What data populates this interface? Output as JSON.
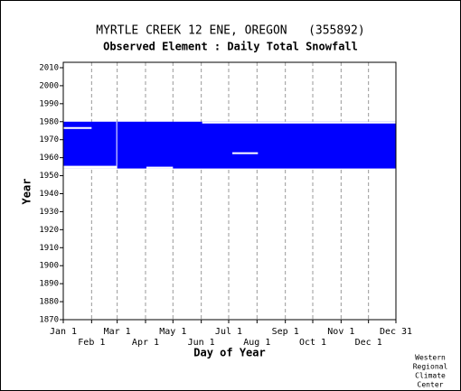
{
  "chart_data": {
    "type": "availability",
    "title": "MYRTLE CREEK 12 ENE, OREGON   (355892)",
    "subtitle": "Observed Element : Daily Total Snowfall",
    "ylabel": "Year",
    "xlabel": "Day of Year",
    "credit": [
      "Western",
      "Regional",
      "Climate",
      "Center"
    ],
    "color": "#0000ff",
    "gap_color": "#ffffff",
    "xlim": [
      1,
      365
    ],
    "ylim": [
      1870,
      2013
    ],
    "xticks": [
      {
        "value": 1,
        "label": "Jan 1"
      },
      {
        "value": 32,
        "label": "Feb 1"
      },
      {
        "value": 60,
        "label": "Mar 1"
      },
      {
        "value": 91,
        "label": "Apr 1"
      },
      {
        "value": 121,
        "label": "May 1"
      },
      {
        "value": 152,
        "label": "Jun 1"
      },
      {
        "value": 182,
        "label": "Jul 1"
      },
      {
        "value": 213,
        "label": "Aug 1"
      },
      {
        "value": 244,
        "label": "Sep 1"
      },
      {
        "value": 274,
        "label": "Oct 1"
      },
      {
        "value": 305,
        "label": "Nov 1"
      },
      {
        "value": 335,
        "label": "Dec 1"
      },
      {
        "value": 365,
        "label": "Dec 31"
      }
    ],
    "yticks": [
      1870,
      1880,
      1890,
      1900,
      1910,
      1920,
      1930,
      1940,
      1950,
      1960,
      1970,
      1980,
      1990,
      2000,
      2010
    ],
    "grid": true,
    "records": {
      "x": [
        [
          1,
          365
        ]
      ],
      "y": [
        [
          1954,
          1980
        ]
      ]
    },
    "gaps": {
      "x": [
        [
          1,
          60
        ],
        [
          92,
          121
        ],
        [
          1,
          32
        ],
        [
          186,
          214
        ],
        [
          153,
          365
        ],
        [
          59,
          60
        ]
      ],
      "y": [
        [
          1954,
          1955.5
        ],
        [
          1954,
          1955
        ],
        [
          1976,
          1977
        ],
        [
          1962,
          1963
        ],
        [
          1979,
          1980
        ],
        [
          1955.5,
          1980
        ]
      ]
    }
  }
}
